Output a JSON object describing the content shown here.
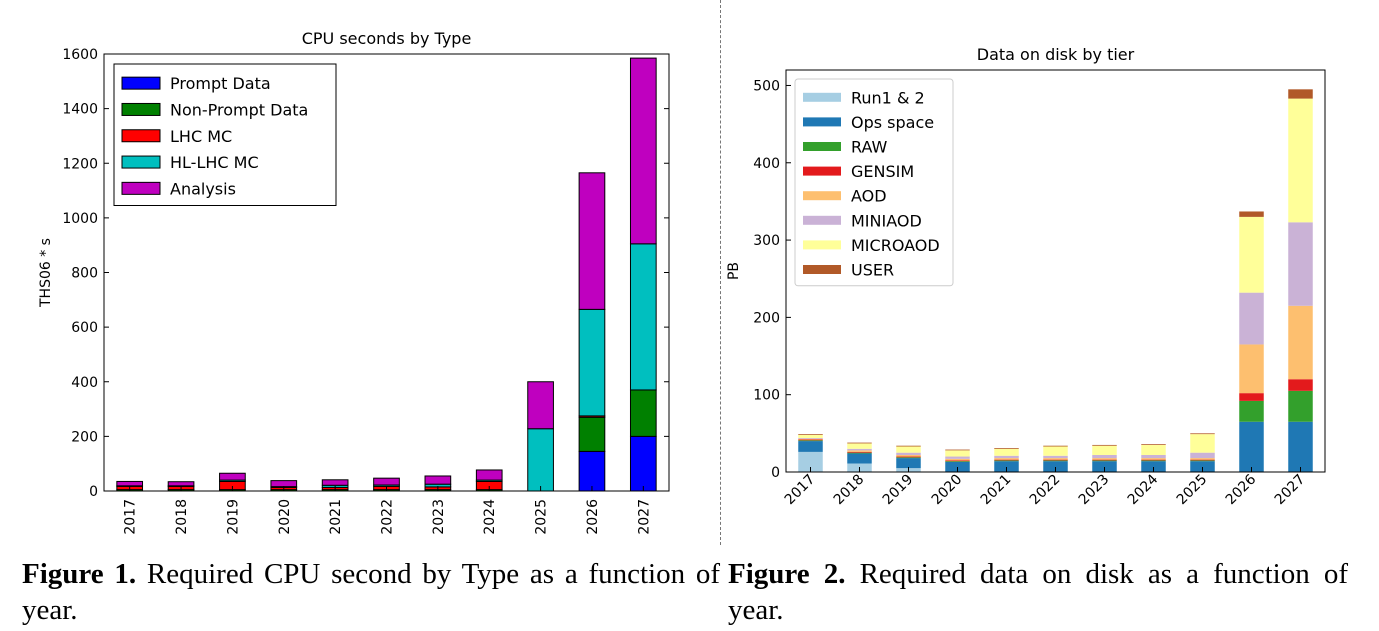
{
  "figures": [
    {
      "label": "Figure 1.",
      "caption": "Required CPU second by Type as a function of year."
    },
    {
      "label": "Figure 2.",
      "caption": "Required data on disk as a function of year."
    }
  ],
  "chart_data": [
    {
      "type": "bar",
      "stacked": true,
      "title": "CPU seconds by Type",
      "xlabel": "",
      "ylabel": "THS06 * s",
      "ylim": [
        0,
        1600
      ],
      "yticks": [
        0,
        200,
        400,
        600,
        800,
        1000,
        1200,
        1400,
        1600
      ],
      "categories": [
        "2017",
        "2018",
        "2019",
        "2020",
        "2021",
        "2022",
        "2023",
        "2024",
        "2025",
        "2026",
        "2027"
      ],
      "legend_position": "top-left",
      "series": [
        {
          "name": "Prompt Data",
          "color": "#0000ff",
          "values": [
            0,
            0,
            0,
            0,
            0,
            0,
            0,
            0,
            0,
            145,
            200
          ]
        },
        {
          "name": "Non-Prompt Data",
          "color": "#008000",
          "values": [
            5,
            5,
            5,
            5,
            5,
            5,
            5,
            5,
            0,
            125,
            170
          ]
        },
        {
          "name": "LHC MC",
          "color": "#ff0000",
          "values": [
            12,
            12,
            30,
            8,
            8,
            12,
            10,
            30,
            0,
            5,
            0
          ]
        },
        {
          "name": "HL-LHC MC",
          "color": "#00bfbf",
          "values": [
            2,
            2,
            5,
            3,
            8,
            5,
            10,
            5,
            228,
            390,
            535
          ]
        },
        {
          "name": "Analysis",
          "color": "#bf00bf",
          "values": [
            16,
            15,
            25,
            22,
            20,
            25,
            30,
            37,
            172,
            500,
            680
          ]
        }
      ]
    },
    {
      "type": "bar",
      "stacked": true,
      "title": "Data on disk by tier",
      "xlabel": "",
      "ylabel": "PB",
      "ylim": [
        0,
        520
      ],
      "yticks": [
        0,
        100,
        200,
        300,
        400,
        500
      ],
      "categories": [
        "2017",
        "2018",
        "2019",
        "2020",
        "2021",
        "2022",
        "2023",
        "2024",
        "2025",
        "2026",
        "2027"
      ],
      "legend_position": "top-left",
      "series": [
        {
          "name": "Run1 & 2",
          "color": "#a6cee3",
          "values": [
            26,
            11,
            5,
            0,
            0,
            0,
            0,
            0,
            0,
            0,
            0
          ]
        },
        {
          "name": "Ops space",
          "color": "#1f78b4",
          "values": [
            14,
            13,
            13,
            13,
            14,
            14,
            14,
            14,
            14,
            65,
            65
          ]
        },
        {
          "name": "RAW",
          "color": "#33a02c",
          "values": [
            1,
            1,
            1,
            1,
            1,
            1,
            1,
            1,
            1,
            27,
            40
          ]
        },
        {
          "name": "GENSIM",
          "color": "#e31a1c",
          "values": [
            1,
            1,
            1,
            1,
            1,
            1,
            1,
            1,
            1,
            10,
            15
          ]
        },
        {
          "name": "AOD",
          "color": "#fdbf6f",
          "values": [
            1,
            2,
            2,
            2,
            2,
            2,
            2,
            2,
            2,
            63,
            95
          ]
        },
        {
          "name": "MINIAOD",
          "color": "#cab2d6",
          "values": [
            1,
            2,
            3,
            3,
            3,
            3,
            4,
            4,
            7,
            67,
            108
          ]
        },
        {
          "name": "MICROAOD",
          "color": "#ffff99",
          "values": [
            4,
            7,
            8,
            8,
            9,
            12,
            12,
            13,
            24,
            98,
            160
          ]
        },
        {
          "name": "USER",
          "color": "#b15928",
          "values": [
            1,
            1,
            1,
            1,
            1,
            1,
            1,
            1,
            1,
            7,
            12
          ]
        }
      ]
    }
  ]
}
